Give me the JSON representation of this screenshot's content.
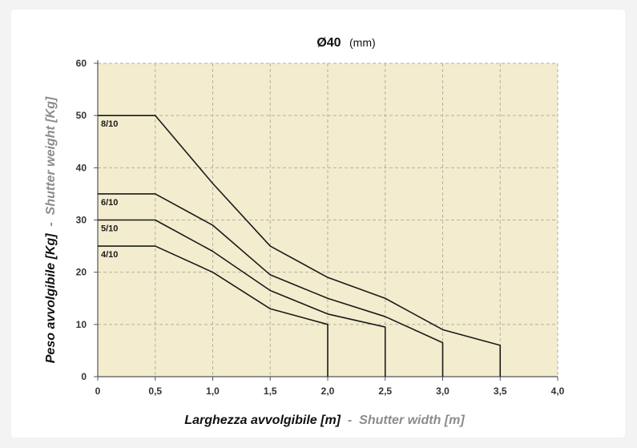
{
  "chart_data": {
    "type": "line",
    "title": "Ø40",
    "title_unit": "(mm)",
    "xlabel_it": "Larghezza avvolgibile [m]",
    "xlabel_sep": " - ",
    "xlabel_en": "Shutter width [m]",
    "ylabel_it": "Peso avvolgibile [Kg]",
    "ylabel_sep": " - ",
    "ylabel_en": "Shutter weight [Kg]",
    "xlim": [
      0,
      4
    ],
    "ylim": [
      0,
      60
    ],
    "xticks": [
      0,
      0.5,
      1.0,
      1.5,
      2.0,
      2.5,
      3.0,
      3.5,
      4.0
    ],
    "xtick_labels": [
      "0",
      "0,5",
      "1,0",
      "1,5",
      "2,0",
      "2,5",
      "3,0",
      "3,5",
      "4,0"
    ],
    "yticks": [
      0,
      10,
      20,
      30,
      40,
      50,
      60
    ],
    "ytick_labels": [
      "0",
      "10",
      "20",
      "30",
      "40",
      "50",
      "60"
    ],
    "grid": true,
    "series": [
      {
        "name": "8/10",
        "x": [
          0,
          0.5,
          1.0,
          1.5,
          2.0,
          2.5,
          3.0,
          3.5,
          3.5
        ],
        "y": [
          50,
          50,
          37,
          25,
          19,
          15,
          9,
          6,
          0
        ]
      },
      {
        "name": "6/10",
        "x": [
          0,
          0.5,
          1.0,
          1.5,
          2.0,
          2.5,
          3.0,
          3.0
        ],
        "y": [
          35,
          35,
          29,
          19.5,
          15,
          11.5,
          6.5,
          0
        ]
      },
      {
        "name": "5/10",
        "x": [
          0,
          0.5,
          1.0,
          1.5,
          2.0,
          2.5,
          2.5
        ],
        "y": [
          30,
          30,
          24,
          16.5,
          12,
          9.5,
          0
        ]
      },
      {
        "name": "4/10",
        "x": [
          0,
          0.5,
          1.0,
          1.5,
          2.0,
          2.0
        ],
        "y": [
          25,
          25,
          20,
          13,
          10,
          0
        ]
      }
    ],
    "colors": {
      "plot_background": "#f3ecce",
      "grid": "#b5b0a0",
      "axis": "#555555",
      "line": "#1a1a1a",
      "label_primary": "#111111",
      "label_secondary": "#8c8c8c"
    }
  }
}
